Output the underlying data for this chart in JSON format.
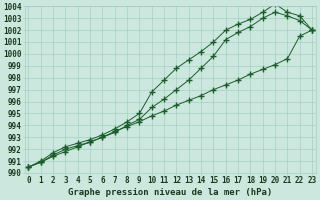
{
  "title": "Graphe pression niveau de la mer (hPa)",
  "x_values": [
    0,
    1,
    2,
    3,
    4,
    5,
    6,
    7,
    8,
    9,
    10,
    11,
    12,
    13,
    14,
    15,
    16,
    17,
    18,
    19,
    20,
    21,
    22,
    23
  ],
  "line_straight": [
    990.5,
    990.9,
    991.4,
    991.8,
    992.2,
    992.6,
    993.0,
    993.5,
    993.9,
    994.3,
    994.8,
    995.2,
    995.7,
    996.1,
    996.5,
    997.0,
    997.4,
    997.8,
    998.3,
    998.7,
    999.1,
    999.6,
    1001.5,
    1002.0
  ],
  "line_upper": [
    990.5,
    991.0,
    991.7,
    992.2,
    992.5,
    992.8,
    993.2,
    993.7,
    994.3,
    995.0,
    996.8,
    997.8,
    998.8,
    999.5,
    1000.2,
    1001.0,
    1002.0,
    1002.5,
    1002.9,
    1003.5,
    1004.2,
    1003.5,
    1003.2,
    1002.0
  ],
  "line_lower": [
    990.5,
    990.9,
    991.5,
    992.0,
    992.3,
    992.6,
    993.0,
    993.4,
    994.0,
    994.5,
    995.5,
    996.2,
    997.0,
    997.8,
    998.8,
    999.8,
    1001.2,
    1001.8,
    1002.3,
    1003.0,
    1003.5,
    1003.2,
    1002.8,
    1002.0
  ],
  "background_color": "#cce8de",
  "grid_color": "#99ccbb",
  "line_color": "#1a5c2a",
  "marker": "+",
  "marker_size": 4,
  "marker_lw": 1.0,
  "ylim_min": 990,
  "ylim_max": 1004,
  "xlim_min": 0,
  "xlim_max": 23,
  "ytick_step": 1,
  "label_color": "#1a3a20",
  "title_fontsize": 6.5,
  "tick_fontsize": 5.5,
  "line_width": 0.7
}
